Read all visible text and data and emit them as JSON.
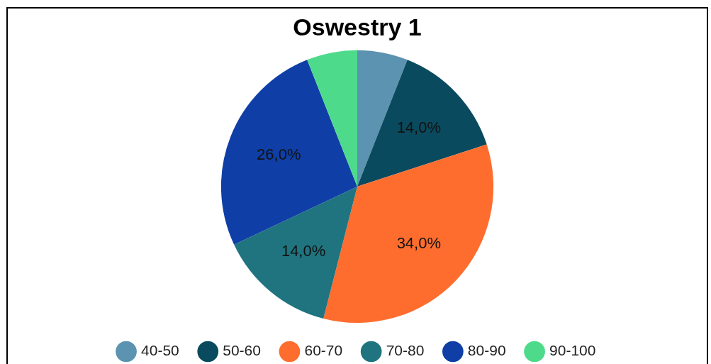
{
  "chart_data": {
    "type": "pie",
    "title": "Oswestry 1",
    "categories": [
      "40-50",
      "50-60",
      "60-70",
      "70-80",
      "80-90",
      "90-100"
    ],
    "values": [
      6,
      14,
      34,
      14,
      26,
      6
    ],
    "colors": [
      "#5b93b0",
      "#0a4a5e",
      "#ff6d2e",
      "#1f7480",
      "#0f3fa6",
      "#4ddb8b"
    ],
    "value_labels": [
      null,
      "14,0%",
      "34,0%",
      "14,0%",
      "26,0%",
      null
    ],
    "legend": "bottom"
  }
}
